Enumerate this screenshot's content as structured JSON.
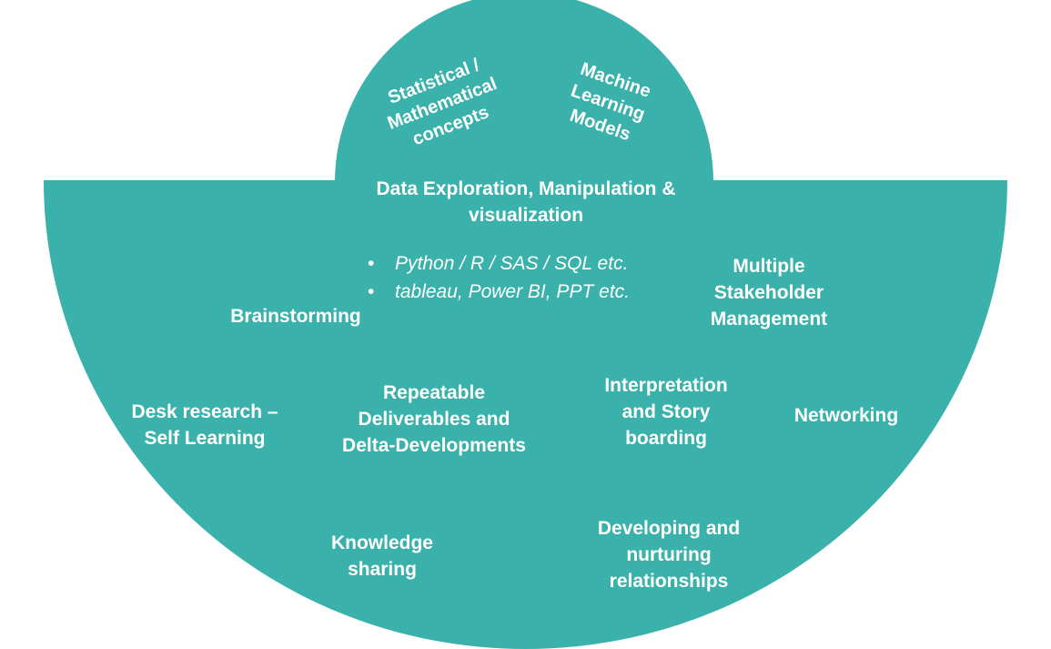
{
  "colors": {
    "fill": "#3ab1aa",
    "text": "#ffffff",
    "background": "#ffffff"
  },
  "top_cap": {
    "left": [
      "Statistical /",
      "Mathematical",
      "concepts"
    ],
    "right": [
      "Machine",
      "Learning",
      "Models"
    ]
  },
  "center": {
    "heading": [
      "Data Exploration, Manipulation &",
      "visualization"
    ],
    "tools": [
      "Python / R / SAS / SQL etc.",
      "tableau, Power BI, PPT etc."
    ]
  },
  "items": {
    "brainstorming": [
      "Brainstorming"
    ],
    "stakeholder": [
      "Multiple",
      "Stakeholder",
      "Management"
    ],
    "desk_research": [
      "Desk research –",
      "Self Learning"
    ],
    "deliverables": [
      "Repeatable",
      "Deliverables and",
      "Delta-Developments"
    ],
    "interpretation": [
      "Interpretation",
      "and Story",
      "boarding"
    ],
    "networking": [
      "Networking"
    ],
    "knowledge": [
      "Knowledge",
      "sharing"
    ],
    "relationships": [
      "Developing and",
      "nurturing",
      "relationships"
    ]
  }
}
